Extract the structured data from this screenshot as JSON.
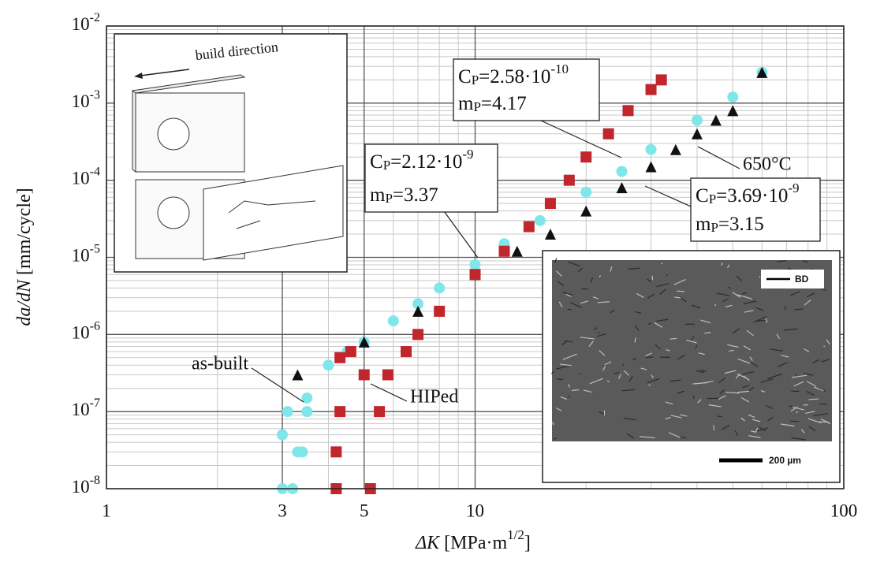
{
  "chart_data": {
    "type": "scatter",
    "x_label_parts": [
      "ΔK",
      " [MPa·m",
      "1/2",
      "]"
    ],
    "y_label_parts": [
      "da/dN",
      " [mm/cycle]"
    ],
    "log_x": true,
    "log_y": true,
    "grid": true,
    "xlim": [
      1,
      100
    ],
    "ylim": [
      1e-08,
      0.01
    ],
    "xticks": [
      1,
      3,
      5,
      10,
      100
    ],
    "yticks": [
      {
        "value": 1e-08,
        "label": "10",
        "exponent": "-8"
      },
      {
        "value": 1e-07,
        "label": "10",
        "exponent": "-7"
      },
      {
        "value": 1e-06,
        "label": "10",
        "exponent": "-6"
      },
      {
        "value": 1e-05,
        "label": "10",
        "exponent": "-5"
      },
      {
        "value": 0.0001,
        "label": "10",
        "exponent": "-4"
      },
      {
        "value": 0.001,
        "label": "10",
        "exponent": "-3"
      },
      {
        "value": 0.01,
        "label": "10",
        "exponent": "-2"
      }
    ],
    "xminor": [
      2,
      4,
      6,
      7,
      8,
      9,
      20,
      30,
      40,
      50,
      60,
      70,
      80,
      90
    ],
    "yminor": [
      2e-08,
      3e-08,
      4e-08,
      5e-08,
      6e-08,
      7e-08,
      8e-08,
      9e-08,
      2e-07,
      3e-07,
      4e-07,
      5e-07,
      6e-07,
      7e-07,
      8e-07,
      9e-07,
      2e-06,
      3e-06,
      4e-06,
      5e-06,
      6e-06,
      7e-06,
      8e-06,
      9e-06,
      2e-05,
      3e-05,
      4e-05,
      5e-05,
      6e-05,
      7e-05,
      8e-05,
      9e-05,
      0.0002,
      0.0003,
      0.0004,
      0.0005,
      0.0006,
      0.0007,
      0.0008,
      0.0009,
      0.002,
      0.003,
      0.004,
      0.005,
      0.006,
      0.007,
      0.008,
      0.009
    ],
    "series": [
      {
        "name": "as-built",
        "color": "#7fe6ea",
        "marker": "circle",
        "x": [
          3,
          3,
          3.1,
          3.2,
          3.3,
          3.4,
          3.5,
          3.5,
          4,
          4.5,
          5,
          6,
          7,
          8,
          10,
          12,
          15,
          20,
          25,
          30,
          40,
          50,
          60
        ],
        "y": [
          1e-08,
          5e-08,
          1e-07,
          1e-08,
          3e-08,
          3e-08,
          1e-07,
          1.5e-07,
          4e-07,
          6e-07,
          8e-07,
          1.5e-06,
          2.5e-06,
          4e-06,
          8e-06,
          1.5e-05,
          3e-05,
          7e-05,
          0.00013,
          0.00025,
          0.0006,
          0.0012,
          0.0025
        ]
      },
      {
        "name": "HIPed",
        "color": "#c0262b",
        "marker": "square",
        "x": [
          4.2,
          4.2,
          4.3,
          4.3,
          4.6,
          5,
          5.2,
          5.5,
          5.8,
          6.5,
          7,
          8,
          10,
          12,
          14,
          16,
          18,
          20,
          23,
          26,
          30,
          32
        ],
        "y": [
          1e-08,
          3e-08,
          1e-07,
          5e-07,
          6e-07,
          3e-07,
          1e-08,
          1e-07,
          3e-07,
          6e-07,
          1e-06,
          2e-06,
          6e-06,
          1.2e-05,
          2.5e-05,
          5e-05,
          0.0001,
          0.0002,
          0.0004,
          0.0008,
          0.0015,
          0.002
        ]
      },
      {
        "name": "650°C",
        "color": "#111111",
        "marker": "triangle",
        "x": [
          3.3,
          5,
          7,
          10,
          13,
          16,
          20,
          25,
          30,
          35,
          40,
          45,
          50,
          60
        ],
        "y": [
          3e-07,
          8e-07,
          2e-06,
          6e-06,
          1.2e-05,
          2e-05,
          4e-05,
          8e-05,
          0.00015,
          0.00025,
          0.0004,
          0.0006,
          0.0008,
          0.0025
        ]
      }
    ],
    "fits": [
      {
        "c_parts": [
          "C",
          "P",
          "=2.58·10",
          "-10"
        ],
        "m_parts": [
          "m",
          "P",
          "=4.17"
        ]
      },
      {
        "c_parts": [
          "C",
          "P",
          "=2.12·10",
          "-9"
        ],
        "m_parts": [
          "m",
          "P",
          "=3.37"
        ]
      },
      {
        "c_parts": [
          "C",
          "P",
          "=3.69·10",
          "-9"
        ],
        "m_parts": [
          "m",
          "P",
          "=3.15"
        ]
      }
    ],
    "schematic_label": "build direction",
    "micrograph_direction": "BD",
    "micrograph_scale": "200 µm"
  }
}
